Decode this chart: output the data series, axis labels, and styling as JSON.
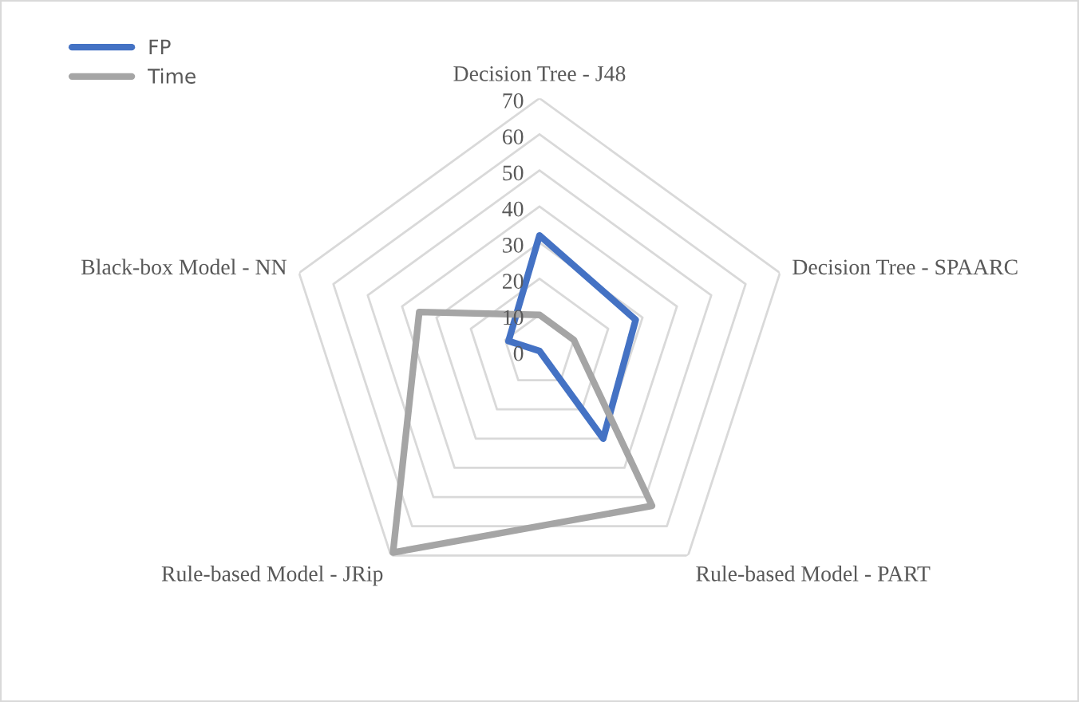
{
  "chart_data": {
    "type": "radar",
    "categories": [
      "Decision Tree - J48",
      "Decision Tree - SPAARC",
      "Rule-based Model - PART",
      "Rule-based Model - JRip",
      "Black-box Model - NN"
    ],
    "series": [
      {
        "name": "FP",
        "color": "#4472c4",
        "values": [
          32,
          28,
          30,
          0,
          9
        ]
      },
      {
        "name": "Time",
        "color": "#a5a5a5",
        "values": [
          10,
          10,
          53,
          69,
          35
        ]
      }
    ],
    "ylim": [
      0,
      70
    ],
    "yticks": [
      0,
      10,
      20,
      30,
      40,
      50,
      60,
      70
    ],
    "grid": true,
    "legend": "top left",
    "marker": "none",
    "line_style": "solid"
  }
}
